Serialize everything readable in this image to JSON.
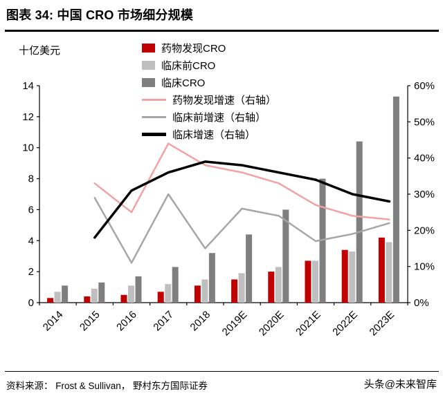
{
  "header": {
    "title": "图表 34: 中国 CRO 市场细分规模"
  },
  "footer": {
    "source": "资料来源： Frost & Sullivan， 野村东方国际证券",
    "watermark": "头条@未来智库"
  },
  "chart_data": {
    "type": "combo-bar-line",
    "title": "中国 CRO 市场细分规模",
    "ylabel_left": "十亿美元",
    "categories": [
      "2014",
      "2015",
      "2016",
      "2017",
      "2018",
      "2019E",
      "2020E",
      "2021E",
      "2022E",
      "2023E"
    ],
    "left_axis": {
      "min": 0,
      "max": 14,
      "step": 2
    },
    "right_axis": {
      "min": 0,
      "max": 60,
      "step": 10,
      "suffix": "%"
    },
    "grid": false,
    "legend_position": "top-center",
    "bar_series": [
      {
        "name": "药物发现CRO",
        "color": "#c00000",
        "values": [
          0.3,
          0.4,
          0.5,
          0.7,
          1.1,
          1.5,
          2.0,
          2.7,
          3.4,
          4.2
        ]
      },
      {
        "name": "临床前CRO",
        "color": "#bfbfbf",
        "values": [
          0.7,
          0.9,
          1.1,
          1.2,
          1.5,
          1.9,
          2.3,
          2.7,
          3.3,
          3.9
        ]
      },
      {
        "name": "临床CRO",
        "color": "#7f7f7f",
        "values": [
          1.1,
          1.3,
          1.7,
          2.3,
          3.2,
          4.4,
          6.0,
          8.0,
          10.4,
          13.3
        ]
      }
    ],
    "line_series": [
      {
        "name": "药物发现增速（右轴）",
        "color": "#f2a2a2",
        "width": 2.5,
        "values": [
          null,
          33,
          25,
          44,
          38,
          36,
          33,
          27,
          24,
          23
        ]
      },
      {
        "name": "临床前增速（右轴）",
        "color": "#a6a6a6",
        "width": 2.5,
        "values": [
          null,
          29,
          11,
          30,
          15,
          26,
          24,
          17,
          19,
          22
        ]
      },
      {
        "name": "临床增速（右轴）",
        "color": "#000000",
        "width": 3.5,
        "values": [
          null,
          18,
          31,
          36,
          39,
          38,
          36,
          34,
          30,
          28
        ]
      }
    ]
  }
}
